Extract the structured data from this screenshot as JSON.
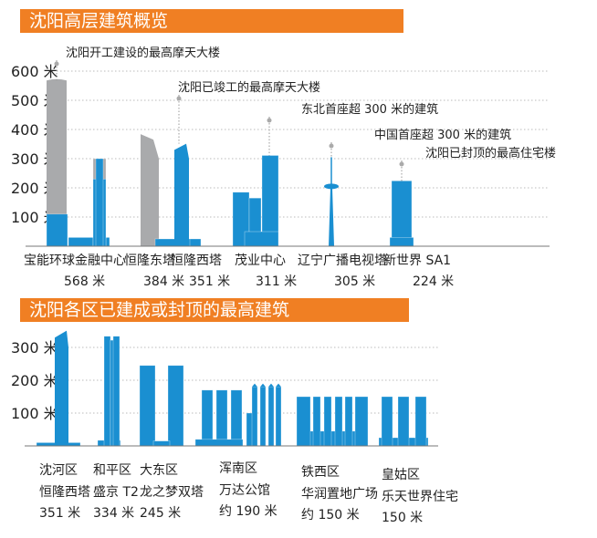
{
  "chart_data": [
    {
      "type": "bar",
      "title": "沈阳高层建筑概览",
      "ylim": [
        0,
        600
      ],
      "yticks": [
        100,
        200,
        300,
        400,
        500,
        600
      ],
      "ytick_labels": [
        "100 米",
        "200 米",
        "300 米",
        "400 米",
        "500 米",
        "600 米"
      ],
      "grid": true,
      "colors": {
        "built": "#1a8fd1",
        "unfinished": "#a9aaac"
      },
      "buildings": [
        {
          "name": "宝能环球金融中心",
          "height": 568,
          "label": "568 米",
          "status": "unfinished",
          "note": "沈阳开工建设的最高摩天大楼"
        },
        {
          "name": "恒隆东塔",
          "height": 384,
          "label": "384 米",
          "status": "unfinished",
          "note": ""
        },
        {
          "name": "恒隆西塔",
          "height": 351,
          "label": "351 米",
          "status": "built",
          "note": "沈阳已竣工的最高摩天大楼"
        },
        {
          "name": "茂业中心",
          "height": 311,
          "label": "311 米",
          "status": "built",
          "note": "东北首座超 300 米的建筑"
        },
        {
          "name": "辽宁广播电视塔",
          "height": 305,
          "label": "305 米",
          "status": "built",
          "note": "中国首座超 300 米的建筑"
        },
        {
          "name": "新世界 SA1",
          "height": 224,
          "label": "224 米",
          "status": "built",
          "note": "沈阳已封顶的最高住宅楼"
        }
      ]
    },
    {
      "type": "bar",
      "title": "沈阳各区已建成或封顶的最高建筑",
      "ylim": [
        0,
        350
      ],
      "yticks": [
        100,
        200,
        300
      ],
      "ytick_labels": [
        "100 米",
        "200 米",
        "300 米"
      ],
      "grid": true,
      "colors": {
        "built": "#1a8fd1"
      },
      "buildings": [
        {
          "district": "沈河区",
          "name": "恒隆西塔",
          "height": 351,
          "label": "351 米"
        },
        {
          "district": "和平区",
          "name": "盛京 T2",
          "height": 334,
          "label": "334 米"
        },
        {
          "district": "大东区",
          "name": "龙之梦双塔",
          "height": 245,
          "label": "245 米"
        },
        {
          "district": "浑南区",
          "name": "万达公馆",
          "height": 190,
          "label": "约 190 米"
        },
        {
          "district": "铁西区",
          "name": "华润置地广场",
          "height": 150,
          "label": "约 150 米"
        },
        {
          "district": "皇姑区",
          "name": "乐天世界住宅",
          "height": 150,
          "label": "150 米"
        }
      ]
    }
  ]
}
